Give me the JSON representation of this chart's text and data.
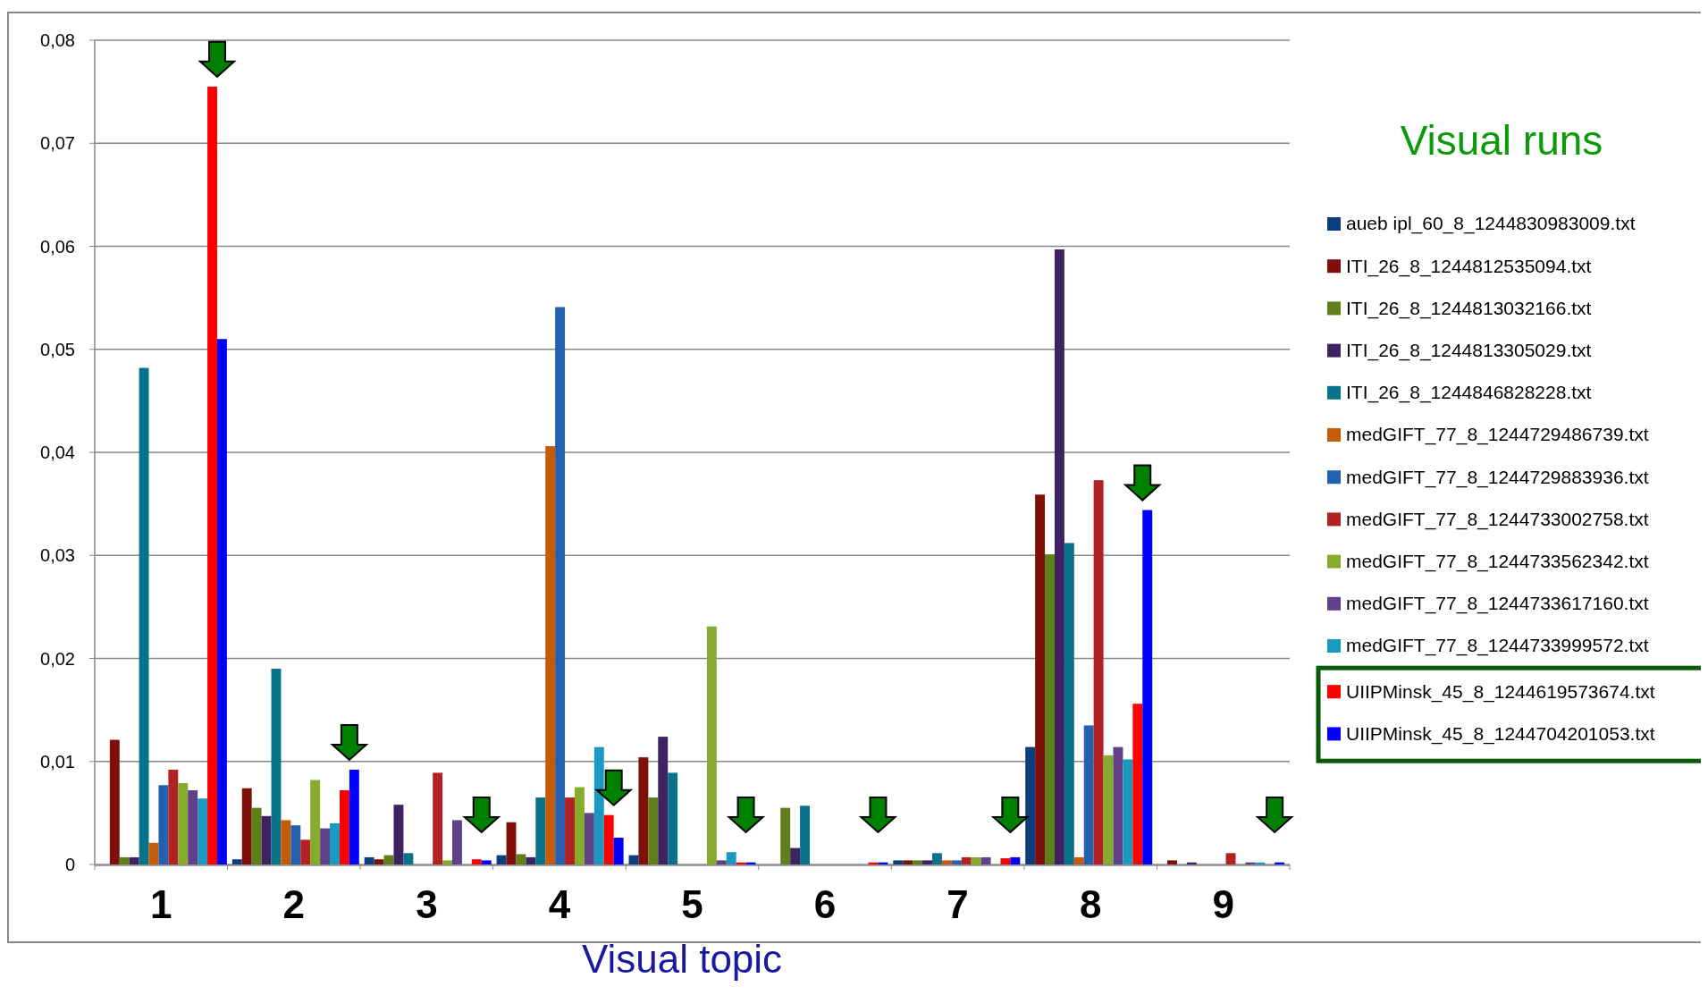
{
  "chart_data": {
    "type": "bar",
    "xlabel": "Visual topic",
    "legend_title": "Visual runs",
    "legend": "right",
    "grid": "y",
    "categories": [
      "1",
      "2",
      "3",
      "4",
      "5",
      "6",
      "7",
      "8",
      "9"
    ],
    "ylim": [
      0,
      0.08
    ],
    "yticks": [
      0,
      {
        "value": 0.01,
        "label": "0,01"
      },
      {
        "value": 0.02,
        "label": "0,02"
      },
      {
        "value": 0.03,
        "label": "0,03"
      },
      {
        "value": 0.04,
        "label": "0,04"
      },
      {
        "value": 0.05,
        "label": "0,05"
      },
      {
        "value": 0.06,
        "label": "0,06"
      },
      {
        "value": 0.07,
        "label": "0,07"
      },
      {
        "value": 0.08,
        "label": "0,08"
      }
    ],
    "series": [
      {
        "name": "aueb ipl_60_8_1244830983009.txt",
        "color": "#0b3d7f",
        "values": [
          0,
          0.0005,
          0.0007,
          0.0009,
          0.0009,
          0,
          0.0004,
          0.0114,
          0
        ]
      },
      {
        "name": "ITI_26_8_1244812535094.txt",
        "color": "#7f0f0a",
        "values": [
          0.0121,
          0.0074,
          0.0005,
          0.0041,
          0.0104,
          0,
          0.0004,
          0.0359,
          0.0004
        ]
      },
      {
        "name": "ITI_26_8_1244813032166.txt",
        "color": "#5e7f1a",
        "values": [
          0.0007,
          0.0055,
          0.0009,
          0.001,
          0.0065,
          0.0055,
          0.0004,
          0.0301,
          0
        ]
      },
      {
        "name": "ITI_26_8_1244813305029.txt",
        "color": "#3f2262",
        "values": [
          0.0007,
          0.0047,
          0.0058,
          0.0007,
          0.0124,
          0.0016,
          0.0004,
          0.0597,
          0.0002
        ]
      },
      {
        "name": "ITI_26_8_1244846828228.txt",
        "color": "#08728a",
        "values": [
          0.0482,
          0.019,
          0.0011,
          0.0065,
          0.0089,
          0.0057,
          0.0011,
          0.0312,
          0
        ]
      },
      {
        "name": "medGIFT_77_8_1244729486739.txt",
        "color": "#c55a08",
        "values": [
          0.0021,
          0.0043,
          0,
          0.0406,
          0,
          0,
          0.0004,
          0.0007,
          0
        ]
      },
      {
        "name": "medGIFT_77_8_1244729883936.txt",
        "color": "#2360b0",
        "values": [
          0.0077,
          0.0038,
          0,
          0.0541,
          0,
          0,
          0.0004,
          0.0135,
          0
        ]
      },
      {
        "name": "medGIFT_77_8_1244733002758.txt",
        "color": "#b22222",
        "values": [
          0.0092,
          0.0024,
          0.0089,
          0.0065,
          0,
          0,
          0.0007,
          0.0373,
          0.0011
        ]
      },
      {
        "name": "medGIFT_77_8_1244733562342.txt",
        "color": "#86ac2e",
        "values": [
          0.0079,
          0.0082,
          0.0004,
          0.0075,
          0.0231,
          0,
          0.0007,
          0.0106,
          0
        ]
      },
      {
        "name": "medGIFT_77_8_1244733617160.txt",
        "color": "#604088",
        "values": [
          0.0072,
          0.0035,
          0.0043,
          0.005,
          0.0004,
          0,
          0.0007,
          0.0114,
          0.0002
        ]
      },
      {
        "name": "medGIFT_77_8_1244733999572.txt",
        "color": "#1a9ac0",
        "values": [
          0.0064,
          0.004,
          0,
          0.0114,
          0.0012,
          0,
          0,
          0.0102,
          0.0002
        ]
      },
      {
        "name": "UIIPMinsk_45_8_1244619573674.txt",
        "color": "#ff0000",
        "values": [
          0.0755,
          0.0072,
          0.0005,
          0.0048,
          0.0002,
          0.0002,
          0.0006,
          0.0156,
          0
        ]
      },
      {
        "name": "UIIPMinsk_45_8_1244704201053.txt",
        "color": "#0000ff",
        "values": [
          0.051,
          0.0092,
          0.0004,
          0.0026,
          0.0002,
          0.0002,
          0.0007,
          0.0344,
          0.0002
        ]
      }
    ]
  }
}
